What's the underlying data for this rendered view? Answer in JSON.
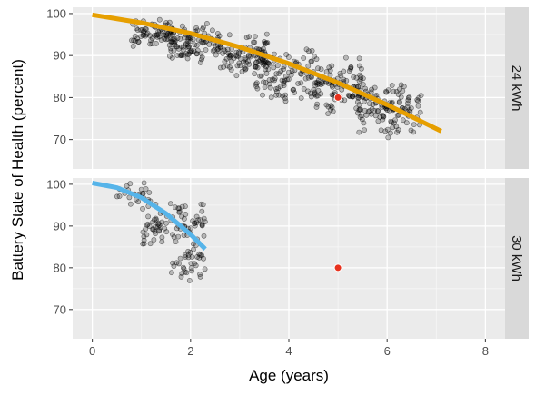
{
  "chart_data": {
    "type": "scatter",
    "xlabel": "Age (years)",
    "ylabel": "Battery State of Health (percent)",
    "xlim": [
      -0.4,
      8.4
    ],
    "x_ticks": [
      0,
      2,
      4,
      6,
      8
    ],
    "grid": true,
    "facets": [
      {
        "label": "24 kWh",
        "ylim": [
          63,
          101.5
        ],
        "y_ticks": [
          70,
          80,
          90,
          100
        ],
        "trend": {
          "color": "#E69F00",
          "x": [
            0,
            1,
            2,
            3,
            4,
            5,
            6,
            7.1
          ],
          "y": [
            99.7,
            97.8,
            95.3,
            92.0,
            88.1,
            83.5,
            78.3,
            72.0
          ]
        },
        "highlight": {
          "x": 5.0,
          "y": 80,
          "color": "#E8321E"
        },
        "clusters": [
          {
            "x": [
              0.8,
              1.7
            ],
            "y": [
              92,
              99
            ],
            "n": 70
          },
          {
            "x": [
              1.5,
              2.6
            ],
            "y": [
              88,
              98
            ],
            "n": 110
          },
          {
            "x": [
              2.6,
              3.6
            ],
            "y": [
              84,
              96
            ],
            "n": 90
          },
          {
            "x": [
              3.3,
              4.6
            ],
            "y": [
              78,
              92
            ],
            "n": 110
          },
          {
            "x": [
              4.5,
              5.6
            ],
            "y": [
              75,
              90
            ],
            "n": 100
          },
          {
            "x": [
              5.4,
              6.7
            ],
            "y": [
              70,
              84
            ],
            "n": 120
          }
        ]
      },
      {
        "label": "30 kWh",
        "ylim": [
          63,
          101.5
        ],
        "y_ticks": [
          70,
          80,
          90,
          100
        ],
        "trend": {
          "color": "#56B4E9",
          "x": [
            0,
            0.5,
            1.0,
            1.5,
            2.0,
            2.3
          ],
          "y": [
            100.3,
            99.2,
            96.8,
            93.0,
            88.0,
            84.5
          ]
        },
        "highlight": {
          "x": 5.0,
          "y": 80,
          "color": "#E8321E"
        },
        "clusters": [
          {
            "x": [
              0.5,
              1.2
            ],
            "y": [
              95,
              100.5
            ],
            "n": 25
          },
          {
            "x": [
              1.0,
              2.3
            ],
            "y": [
              84,
              97
            ],
            "n": 90
          },
          {
            "x": [
              1.6,
              2.3
            ],
            "y": [
              76,
              86
            ],
            "n": 35
          }
        ]
      }
    ]
  }
}
